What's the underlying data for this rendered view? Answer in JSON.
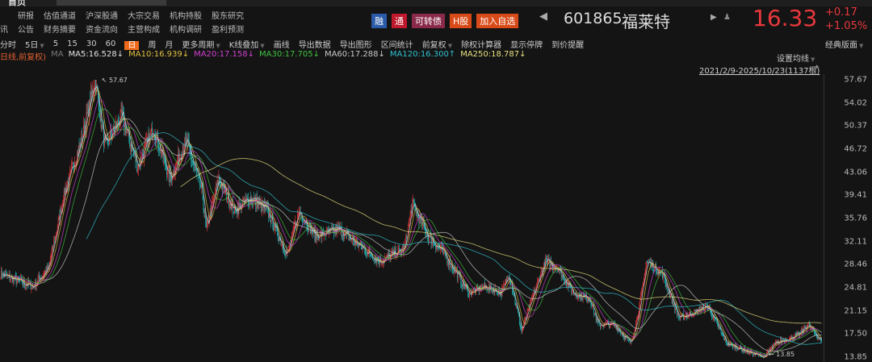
{
  "nav": {
    "row1": [
      "研报",
      "估值通道",
      "沪深股通",
      "大宗交易",
      "机构持股",
      "股东研究"
    ],
    "row2_prefix": "讯",
    "row2": [
      "公告",
      "财务摘要",
      "资金流向",
      "主营构成",
      "机构调研",
      "盈利预测"
    ]
  },
  "toolbar": {
    "items": [
      "分时",
      "5日",
      "5",
      "15",
      "30",
      "60",
      "日",
      "周",
      "月",
      "更多周期",
      "K线叠加",
      "画线",
      "导出数据",
      "导出图形",
      "区间统计",
      "前复权",
      "除权计算器",
      "显示停牌",
      "到价提醒"
    ],
    "active": "日",
    "layout": "经典版面"
  },
  "badges": [
    {
      "label": "融",
      "color": "#2a5aa8"
    },
    {
      "label": "通",
      "color": "#c0182c"
    },
    {
      "label": "可转债",
      "color": "#8a2a4a"
    },
    {
      "label": "H股",
      "color": "#d84a18"
    },
    {
      "label": "加入自选",
      "color": "#d84a18"
    }
  ],
  "stock": {
    "code": "601865",
    "name": "福莱特",
    "price": "16.33",
    "change": "+0.17",
    "change_pct": "+1.05%",
    "up_color": "#e8383d"
  },
  "ma_bar": {
    "prefix": "日线,前复权)",
    "ma": "MA",
    "items": [
      {
        "label": "MA5:16.528↓",
        "color": "#e0e0e0"
      },
      {
        "label": "MA10:16.939↓",
        "color": "#e0c040"
      },
      {
        "label": "MA20:17.158↓",
        "color": "#d040d0"
      },
      {
        "label": "MA30:17.705↓",
        "color": "#40c040"
      },
      {
        "label": "MA60:17.288↓",
        "color": "#c8c8c8"
      },
      {
        "label": "MA120:16.300↑",
        "color": "#30c0d0"
      },
      {
        "label": "MA250:18.787↓",
        "color": "#e8e080"
      }
    ]
  },
  "settings_label": "设置均线",
  "range_label": "2021/2/9-2025/10/23(1137根)",
  "chart_data": {
    "type": "candlestick",
    "bars": 1137,
    "ylim": [
      13.85,
      57.67
    ],
    "y_ticks": [
      "57.67",
      "54.02",
      "50.37",
      "46.72",
      "43.06",
      "39.41",
      "35.76",
      "32.11",
      "28.46",
      "24.81",
      "21.15",
      "17.50",
      "13.85"
    ],
    "high_label": "57.67",
    "low_label": "13.85",
    "close_trend": [
      [
        0,
        27
      ],
      [
        45,
        25
      ],
      [
        67,
        28
      ],
      [
        89,
        40
      ],
      [
        112,
        48
      ],
      [
        131,
        57.67
      ],
      [
        145,
        47
      ],
      [
        168,
        52
      ],
      [
        190,
        44
      ],
      [
        212,
        50
      ],
      [
        235,
        42
      ],
      [
        257,
        48
      ],
      [
        279,
        40
      ],
      [
        285,
        34
      ],
      [
        302,
        42
      ],
      [
        324,
        37
      ],
      [
        346,
        39
      ],
      [
        369,
        37
      ],
      [
        397,
        30
      ],
      [
        413,
        37
      ],
      [
        436,
        33
      ],
      [
        469,
        34
      ],
      [
        491,
        32
      ],
      [
        525,
        29
      ],
      [
        559,
        31
      ],
      [
        570,
        38
      ],
      [
        592,
        33
      ],
      [
        615,
        30
      ],
      [
        648,
        24
      ],
      [
        670,
        25
      ],
      [
        693,
        24
      ],
      [
        704,
        27
      ],
      [
        721,
        18
      ],
      [
        738,
        24
      ],
      [
        754,
        29
      ],
      [
        771,
        28
      ],
      [
        793,
        24
      ],
      [
        816,
        23
      ],
      [
        827,
        19
      ],
      [
        849,
        19
      ],
      [
        872,
        16
      ],
      [
        883,
        21
      ],
      [
        894,
        29
      ],
      [
        916,
        27
      ],
      [
        939,
        20
      ],
      [
        961,
        21
      ],
      [
        978,
        22
      ],
      [
        1005,
        16
      ],
      [
        1039,
        14.5
      ],
      [
        1056,
        13.85
      ],
      [
        1072,
        16
      ],
      [
        1106,
        17.5
      ],
      [
        1117,
        19
      ],
      [
        1136,
        16.33
      ]
    ],
    "colors": {
      "up": "#e8383d",
      "down": "#20c0c0"
    }
  }
}
